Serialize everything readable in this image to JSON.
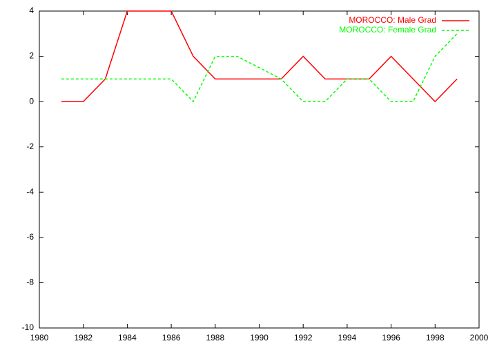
{
  "chart_data": {
    "type": "line",
    "x": [
      1981,
      1982,
      1983,
      1984,
      1985,
      1986,
      1987,
      1988,
      1989,
      1990,
      1991,
      1992,
      1993,
      1994,
      1995,
      1996,
      1997,
      1998,
      1999
    ],
    "series": [
      {
        "name": "MOROCCO: Male Grad",
        "color": "#ff0000",
        "dashed": false,
        "values": [
          0,
          0,
          1,
          4,
          4,
          4,
          2,
          1,
          1,
          1,
          1,
          2,
          1,
          1,
          1,
          2,
          1,
          0,
          1
        ]
      },
      {
        "name": "MOROCCO: Female Grad",
        "color": "#00ff00",
        "dashed": true,
        "values": [
          1,
          1,
          1,
          1,
          1,
          1,
          0,
          2,
          2,
          1.5,
          1,
          0,
          0,
          1,
          1,
          0,
          0,
          2,
          3
        ]
      }
    ],
    "xlim": [
      1980,
      2000
    ],
    "xticks": [
      1980,
      1982,
      1984,
      1986,
      1988,
      1990,
      1992,
      1994,
      1996,
      1998,
      2000
    ],
    "ylim": [
      -10,
      4
    ],
    "yticks": [
      -10,
      -8,
      -6,
      -4,
      -2,
      0,
      2,
      4
    ],
    "legend": "top-right"
  }
}
